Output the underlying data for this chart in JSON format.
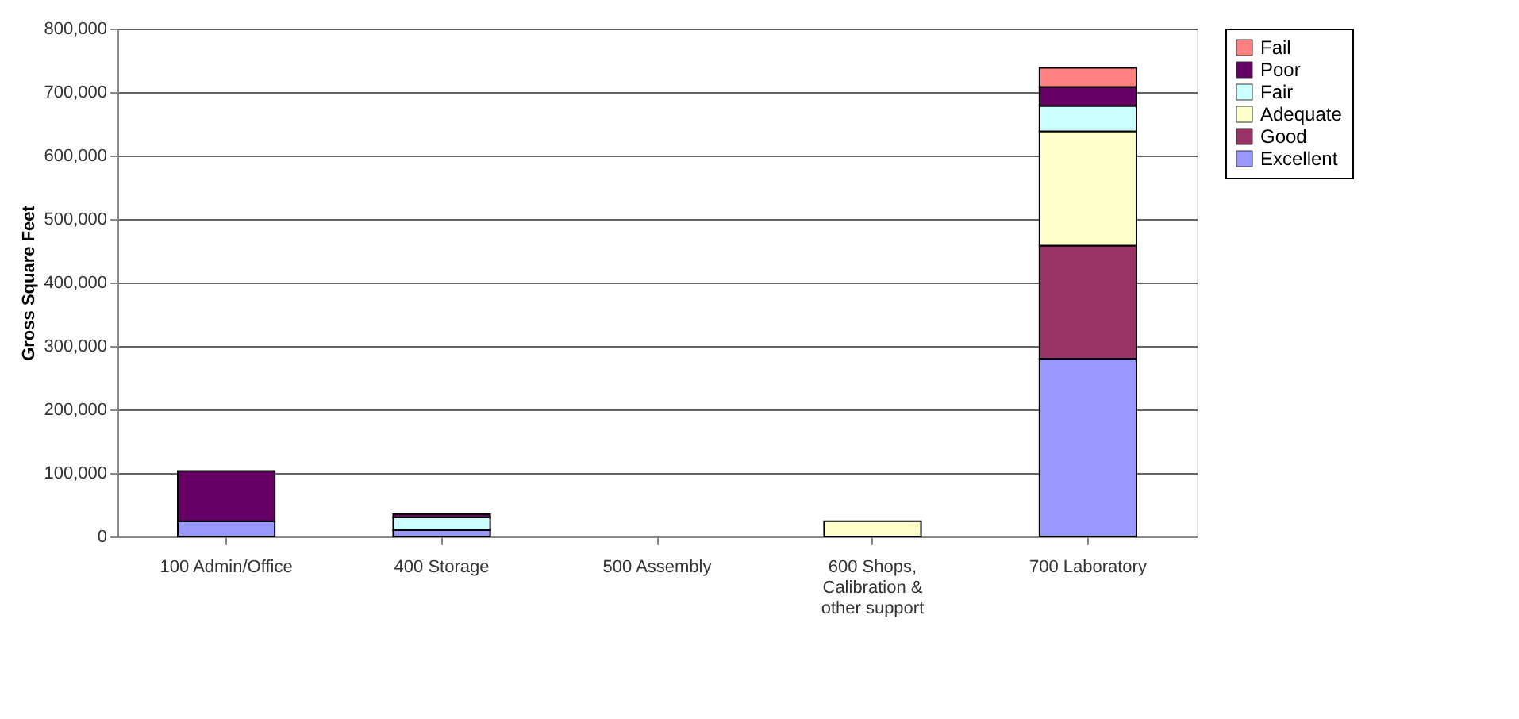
{
  "chart_data": {
    "type": "bar",
    "stacked": true,
    "ylabel": "Gross Square Feet",
    "categories": [
      "100 Admin/Office",
      "400 Storage",
      "500 Assembly",
      "600 Shops, Calibration & other support",
      "700 Laboratory"
    ],
    "series": [
      {
        "name": "Excellent",
        "color": "#9999ff",
        "values": [
          24000,
          10000,
          null,
          null,
          280000
        ]
      },
      {
        "name": "Good",
        "color": "#993366",
        "values": [
          null,
          null,
          null,
          null,
          178000
        ]
      },
      {
        "name": "Adequate",
        "color": "#ffffcc",
        "values": [
          null,
          null,
          null,
          24000,
          180000
        ]
      },
      {
        "name": "Fair",
        "color": "#ccffff",
        "values": [
          null,
          20000,
          null,
          null,
          40000
        ]
      },
      {
        "name": "Poor",
        "color": "#660066",
        "values": [
          79000,
          5000,
          null,
          null,
          30000
        ]
      },
      {
        "name": "Fail",
        "color": "#ff8080",
        "values": [
          null,
          null,
          null,
          null,
          30000
        ]
      }
    ],
    "ylim": [
      0,
      800000
    ],
    "yticks": [
      0,
      {
        "value": 100000,
        "label": "100,000"
      },
      {
        "value": 200000,
        "label": "200,000"
      },
      {
        "value": 300000,
        "label": "300,000"
      },
      {
        "value": 400000,
        "label": "400,000"
      },
      {
        "value": 500000,
        "label": "500,000"
      },
      {
        "value": 600000,
        "label": "600,000"
      },
      {
        "value": 700000,
        "label": "700,000"
      },
      {
        "value": 800000,
        "label": "800,000"
      }
    ],
    "grid": "y",
    "legend": "right"
  }
}
